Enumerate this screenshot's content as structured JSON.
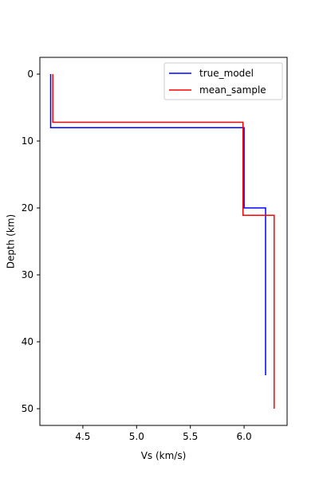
{
  "chart_data": {
    "type": "line",
    "xlabel": "Vs (km/s)",
    "ylabel": "Depth (km)",
    "xlim": [
      4.1,
      6.4
    ],
    "ylim": [
      52.5,
      -2.5
    ],
    "y_inverted": true,
    "xticks": [
      4.5,
      5.0,
      5.5,
      6.0
    ],
    "yticks": [
      0,
      10,
      20,
      30,
      40,
      50
    ],
    "grid": false,
    "legend_position": "top-right",
    "series": [
      {
        "name": "true_model",
        "color": "#0000ff",
        "vs": [
          4.2,
          4.2,
          6.0,
          6.0,
          6.2,
          6.2
        ],
        "depth": [
          0,
          8,
          8,
          20,
          20,
          45
        ]
      },
      {
        "name": "mean_sample",
        "color": "#ff0000",
        "vs": [
          4.22,
          4.22,
          5.99,
          5.99,
          6.28,
          6.28
        ],
        "depth": [
          0,
          7.2,
          7.2,
          21.1,
          21.1,
          50
        ]
      }
    ]
  }
}
